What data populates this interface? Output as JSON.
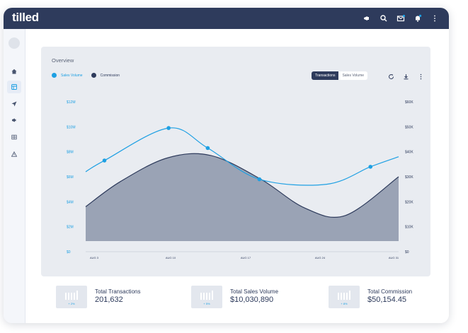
{
  "app": {
    "logo": "tilled"
  },
  "topbar": {
    "icons": [
      "megaphone-icon",
      "search-icon",
      "mail-icon",
      "bell-icon",
      "more-vertical-icon"
    ]
  },
  "sidebar": {
    "items": [
      {
        "icon": "home-icon"
      },
      {
        "icon": "grid-icon",
        "active": true
      },
      {
        "icon": "send-icon"
      },
      {
        "icon": "megaphone-icon"
      },
      {
        "icon": "table-icon"
      },
      {
        "icon": "warning-icon"
      }
    ]
  },
  "overview": {
    "title": "Overview",
    "legend": [
      {
        "label": "Sales Volume",
        "color": "#1ea0e3"
      },
      {
        "label": "Commission",
        "color": "#2e3b5c"
      }
    ],
    "toggle": {
      "options": [
        "Transactions",
        "Sales Volume"
      ],
      "selected": "Transactions"
    },
    "tools": [
      "refresh-icon",
      "download-icon",
      "more-vertical-icon"
    ]
  },
  "chart_data": {
    "type": "area",
    "x": [
      "AUG 3",
      "AUG 10",
      "AUG 17",
      "AUG 24",
      "AUG 31"
    ],
    "left_ticks": [
      "$0",
      "$2M",
      "$4M",
      "$6M",
      "$8M",
      "$10M",
      "$12M"
    ],
    "right_ticks": [
      "$0",
      "$10K",
      "$20K",
      "$30K",
      "$40K",
      "$50K",
      "$60K"
    ],
    "left_ylim": [
      0,
      12000000
    ],
    "right_ylim": [
      0,
      60000
    ],
    "series": [
      {
        "name": "Sales Volume",
        "type": "line",
        "axis": "left",
        "color": "#1ea0e3",
        "x": [
          0,
          0.6,
          2.65,
          3.9,
          5.55,
          7.7,
          9.1,
          10.0
        ],
        "values": [
          6400000,
          7300000,
          9900000,
          8300000,
          5800000,
          5400000,
          6800000,
          7600000
        ],
        "markers": [
          1,
          2,
          3,
          4,
          6
        ]
      },
      {
        "name": "Commission",
        "type": "area",
        "axis": "right",
        "color": "#2e3b5c",
        "fill": "#9aa3b5",
        "x": [
          0,
          1.1,
          2.6,
          4.0,
          5.6,
          7.0,
          8.3,
          10.0
        ],
        "values": [
          18000,
          28000,
          37500,
          38500,
          29000,
          17500,
          14500,
          30000
        ]
      }
    ]
  },
  "stats": [
    {
      "label": "Total Transactions",
      "value": "201,632",
      "change": "+ 2%"
    },
    {
      "label": "Total Sales Volume",
      "value": "$10,030,890",
      "change": "+ 5%"
    },
    {
      "label": "Total Commission",
      "value": "$50,154.45",
      "change": "+ 8%"
    }
  ]
}
